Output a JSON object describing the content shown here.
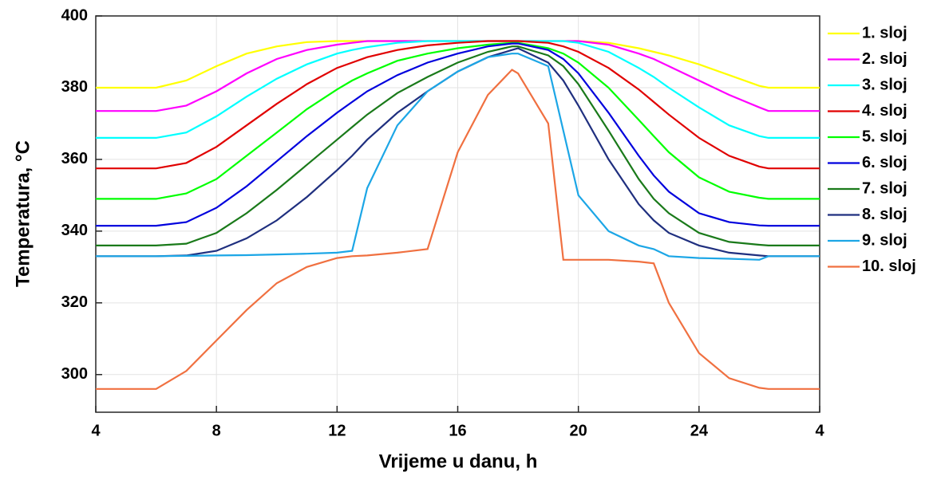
{
  "chart_data": {
    "type": "line",
    "x_label": "Vrijeme u danu, h",
    "y_label": "Temperatura, °C",
    "x": [
      4,
      5,
      6,
      7,
      8,
      9,
      10,
      11,
      12,
      12.5,
      13,
      14,
      15,
      16,
      17,
      17.8,
      18,
      19,
      19.5,
      20,
      21,
      22,
      22.5,
      23,
      24,
      25,
      26,
      26.3,
      27,
      28
    ],
    "xlim": [
      4,
      28
    ],
    "xticks": [
      4,
      8,
      12,
      16,
      20,
      24,
      {
        "value": 28,
        "label": "4"
      }
    ],
    "ylim": [
      289.5,
      400
    ],
    "yticks": [
      300,
      320,
      340,
      360,
      380,
      400
    ],
    "grid": true,
    "legend": "right",
    "series": [
      {
        "name": "1. sloj",
        "color": "#ffff00",
        "values": [
          380,
          380,
          380,
          382,
          386,
          389.5,
          391.5,
          392.7,
          393,
          393,
          393,
          393,
          393,
          393,
          393,
          393,
          393,
          393,
          393,
          393,
          392.5,
          391,
          390,
          389,
          386.5,
          383.5,
          380.5,
          380,
          380,
          380
        ]
      },
      {
        "name": "2. sloj",
        "color": "#ff00ff",
        "values": [
          373.5,
          373.5,
          373.5,
          375,
          379,
          384,
          388,
          390.5,
          392,
          392.5,
          393,
          393,
          393,
          393,
          393,
          393,
          393,
          393,
          393,
          393,
          392,
          389.5,
          388,
          386,
          382,
          378,
          374.5,
          373.5,
          373.5,
          373.5
        ]
      },
      {
        "name": "3. sloj",
        "color": "#00ffff",
        "values": [
          366,
          366,
          366,
          367.5,
          372,
          377.5,
          382.5,
          386.5,
          389.5,
          390.5,
          391.3,
          392.5,
          393,
          393,
          393,
          393,
          393,
          393,
          393,
          392.5,
          390,
          385.5,
          383,
          380,
          374.5,
          369.5,
          366.5,
          366,
          366,
          366
        ]
      },
      {
        "name": "4. sloj",
        "color": "#e00000",
        "values": [
          357.5,
          357.5,
          357.5,
          359,
          363.5,
          369.5,
          375.5,
          381,
          385.5,
          387,
          388.5,
          390.5,
          391.8,
          392.5,
          393,
          393,
          393,
          392.5,
          391.5,
          390,
          385.5,
          379.5,
          376,
          372.5,
          366,
          361,
          358,
          357.5,
          357.5,
          357.5
        ]
      },
      {
        "name": "5. sloj",
        "color": "#00ff00",
        "values": [
          349,
          349,
          349,
          350.5,
          354.5,
          361,
          367.5,
          374,
          379.5,
          382,
          384,
          387.5,
          389.5,
          391,
          392,
          392.5,
          392.5,
          391,
          389.5,
          387,
          380,
          371,
          366.5,
          362,
          355,
          351,
          349.3,
          349,
          349,
          349
        ]
      },
      {
        "name": "6. sloj",
        "color": "#0000dd",
        "values": [
          341.5,
          341.5,
          341.5,
          342.5,
          346.5,
          352.5,
          359.5,
          366.5,
          373,
          376,
          379,
          383.5,
          387,
          389.5,
          391.5,
          392.3,
          392.3,
          390.5,
          388,
          384,
          373,
          361,
          355.5,
          351,
          345,
          342.5,
          341.6,
          341.5,
          341.5,
          341.5
        ]
      },
      {
        "name": "7. sloj",
        "color": "#1a7a1a",
        "values": [
          336,
          336,
          336,
          336.5,
          339.5,
          345,
          351.5,
          358.5,
          365.5,
          369,
          372.5,
          378.5,
          383,
          387,
          390,
          391.5,
          391.5,
          389,
          386,
          381,
          368,
          354.5,
          349,
          345,
          339.5,
          337,
          336.2,
          336,
          336,
          336
        ]
      },
      {
        "name": "8. sloj",
        "color": "#1f2f7f",
        "values": [
          333,
          333,
          333,
          333.2,
          334.5,
          338,
          343,
          349.5,
          357,
          361,
          365.5,
          373,
          379,
          384.5,
          388.5,
          390.5,
          391,
          387,
          382,
          375,
          360,
          347.5,
          343,
          339.5,
          336,
          334,
          333.2,
          333,
          333,
          333
        ]
      },
      {
        "name": "9. sloj",
        "color": "#1ca6e6",
        "values": [
          333,
          333,
          333,
          333.1,
          333.2,
          333.3,
          333.5,
          333.7,
          334,
          334.5,
          352,
          369.5,
          379,
          384.5,
          388.5,
          389.5,
          389.5,
          386,
          368,
          350,
          340,
          336,
          335,
          333,
          332.5,
          332.3,
          332,
          333,
          333,
          333
        ]
      },
      {
        "name": "10. sloj",
        "color": "#f07040",
        "values": [
          296,
          296,
          296,
          301,
          309.5,
          318,
          325.5,
          330,
          332.5,
          333,
          333.2,
          334,
          335,
          362,
          378,
          385,
          384,
          370,
          332,
          332,
          332,
          331.5,
          331,
          320,
          306,
          299,
          296.3,
          296,
          296,
          296
        ]
      }
    ]
  }
}
